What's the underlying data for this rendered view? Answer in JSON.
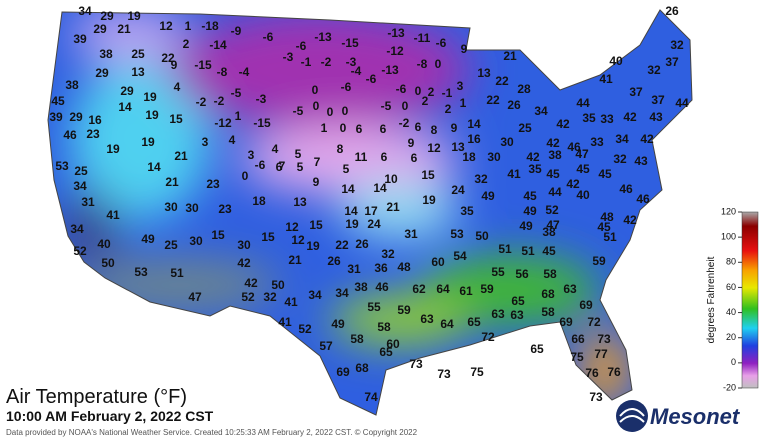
{
  "map": {
    "title": "Air Temperature (°F)",
    "subtitle": "10:00 AM February 2, 2022 CST",
    "credit": "Data provided by NOAA's National Weather Service. Created 10:25:33 AM February 2, 2022 CST. © Copyright 2022",
    "logo": "Mesonet",
    "colorbar": {
      "label": "degrees Fahrenheit",
      "lim": [
        -20,
        120
      ],
      "ticks": [
        120,
        100,
        80,
        60,
        40,
        20,
        0,
        -20
      ]
    },
    "stations": [
      34,
      29,
      19,
      39,
      29,
      21,
      12,
      1,
      -18,
      -9,
      2,
      -14,
      -6,
      -6,
      -13,
      -15,
      -13,
      -11,
      -6,
      9,
      26,
      38,
      25,
      22,
      -15,
      -8,
      -4,
      -3,
      -1,
      -2,
      -3,
      -12,
      -13,
      -8,
      0,
      21,
      40,
      32,
      37,
      38,
      29,
      13,
      9,
      45,
      19,
      4,
      -2,
      -2,
      -5,
      -3,
      0,
      0,
      -6,
      -4,
      -6,
      -6,
      0,
      2,
      -1,
      3,
      13,
      22,
      28,
      41,
      32,
      37,
      37,
      44,
      39,
      29,
      16,
      29,
      14,
      19,
      15,
      -12,
      1,
      -15,
      -5,
      0,
      0,
      -5,
      0,
      2,
      2,
      1,
      22,
      26,
      34,
      44,
      42,
      35,
      33,
      42,
      43,
      46,
      23,
      19,
      19,
      3,
      4,
      3,
      4,
      5,
      1,
      0,
      6,
      6,
      -2,
      6,
      8,
      9,
      14,
      16,
      25,
      30,
      42,
      38,
      46,
      33,
      34,
      42,
      53,
      25,
      14,
      21,
      6,
      5,
      7,
      8,
      5,
      11,
      6,
      9,
      6,
      12,
      13,
      18,
      30,
      41,
      42,
      35,
      45,
      47,
      45,
      32,
      43,
      34,
      31,
      21,
      23,
      0,
      -6,
      7,
      9,
      14,
      14,
      10,
      15,
      24,
      32,
      45,
      44,
      42,
      45,
      46,
      46,
      18,
      13,
      41,
      30,
      30,
      23,
      14,
      17,
      21,
      19,
      35,
      49,
      49,
      47,
      52,
      40,
      45,
      48,
      42,
      34,
      40,
      49,
      25,
      30,
      15,
      30,
      15,
      12,
      15,
      12,
      19,
      24,
      31,
      53,
      50,
      49,
      38,
      51,
      52,
      50,
      53,
      51,
      42,
      21,
      19,
      22,
      26,
      26,
      31,
      36,
      48,
      32,
      60,
      54,
      51,
      51,
      45,
      59,
      47,
      52,
      32,
      41,
      34,
      34,
      38,
      46,
      55,
      62,
      64,
      61,
      59,
      55,
      56,
      58,
      63,
      68,
      69,
      42,
      50,
      41,
      52,
      49,
      58,
      59,
      63,
      64,
      65,
      63,
      63,
      65,
      58,
      69,
      72,
      57,
      58,
      60,
      65,
      72,
      66,
      73,
      65,
      77,
      75,
      69,
      68,
      73,
      73,
      75,
      76,
      76,
      74,
      73
    ]
  }
}
